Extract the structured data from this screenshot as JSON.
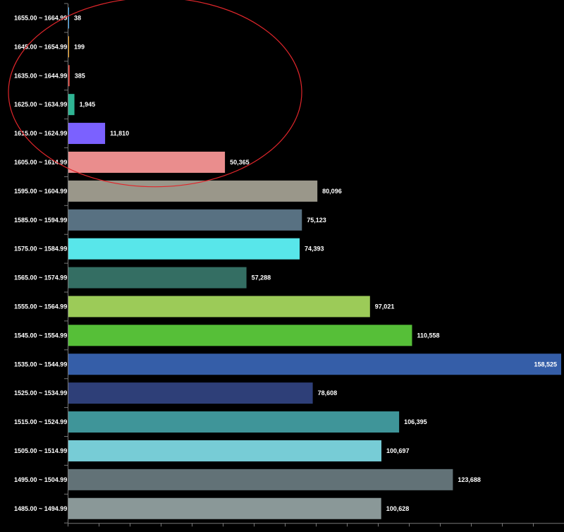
{
  "chart_data": {
    "type": "bar",
    "orientation": "horizontal",
    "categories": [
      "1655.00 ~ 1664.99",
      "1645.00 ~ 1654.99",
      "1635.00 ~ 1644.99",
      "1625.00 ~ 1634.99",
      "1615.00 ~ 1624.99",
      "1605.00 ~ 1614.99",
      "1595.00 ~ 1604.99",
      "1585.00 ~ 1594.99",
      "1575.00 ~ 1584.99",
      "1565.00 ~ 1574.99",
      "1555.00 ~ 1564.99",
      "1545.00 ~ 1554.99",
      "1535.00 ~ 1544.99",
      "1525.00 ~ 1534.99",
      "1515.00 ~ 1524.99",
      "1505.00 ~ 1514.99",
      "1495.00 ~ 1504.99",
      "1485.00 ~ 1494.99"
    ],
    "values": [
      38,
      199,
      385,
      1945,
      11810,
      50365,
      80096,
      75123,
      74393,
      57288,
      97021,
      110558,
      158525,
      78608,
      106395,
      100697,
      123688,
      100628
    ],
    "value_labels": [
      "38",
      "199",
      "385",
      "1,945",
      "11,810",
      "50,365",
      "80,096",
      "75,123",
      "74,393",
      "57,288",
      "97,021",
      "110,558",
      "158,525",
      "78,608",
      "106,395",
      "100,697",
      "123,688",
      "100,628"
    ],
    "colors": [
      "#3fa9f5",
      "#f7a21b",
      "#e8473e",
      "#2fb594",
      "#7b61ff",
      "#ea8d8d",
      "#9a978a",
      "#587182",
      "#58e6ea",
      "#346e63",
      "#9ccb58",
      "#56bf38",
      "#355ea8",
      "#2e3f78",
      "#3f9599",
      "#77ccd6",
      "#627277",
      "#8a9898"
    ],
    "xlim": [
      0,
      158525
    ],
    "title": "",
    "xlabel": "",
    "ylabel": "",
    "grid": false,
    "annotations": [
      {
        "type": "ellipse",
        "color": "#e0262b",
        "covers_categories": [
          "1655.00 ~ 1664.99",
          "1605.00 ~ 1614.99"
        ]
      }
    ]
  }
}
